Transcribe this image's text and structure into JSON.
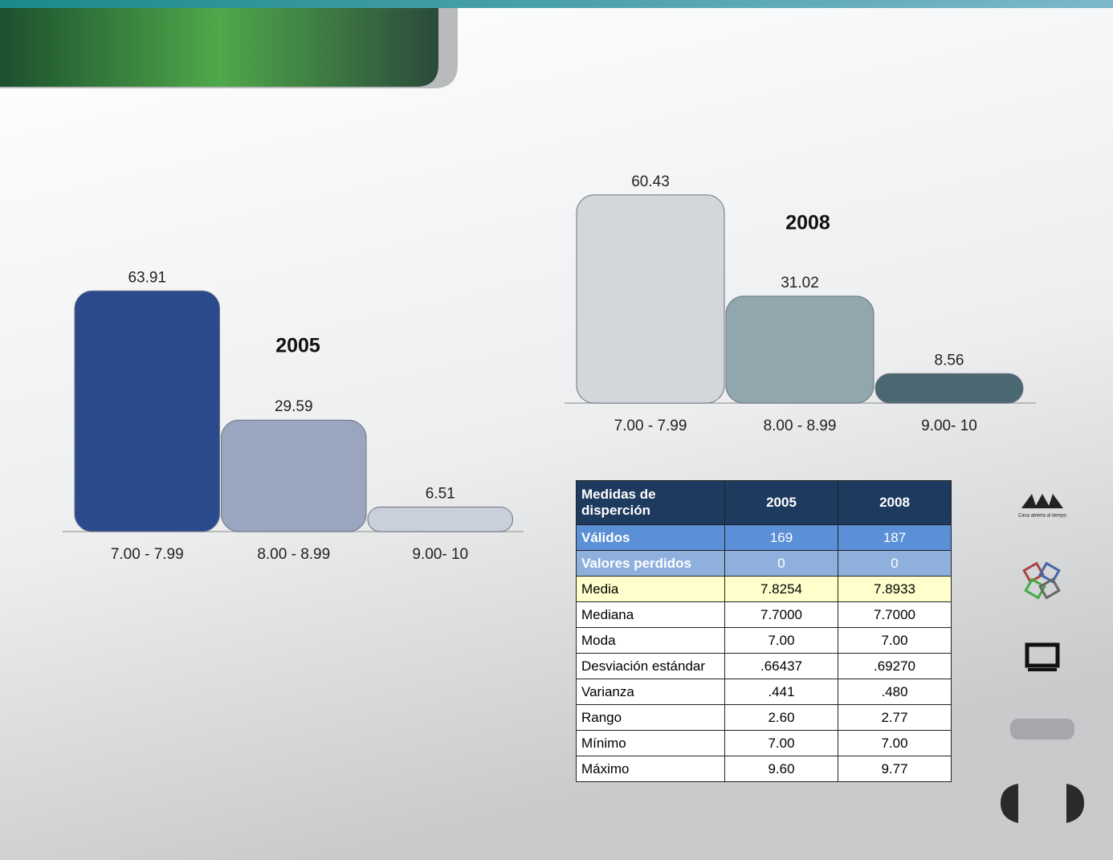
{
  "chart_data": [
    {
      "type": "bar",
      "title": "2005",
      "categories": [
        "7.00 - 7.99",
        "8.00 - 8.99",
        "9.00- 10"
      ],
      "values": [
        63.91,
        29.59,
        6.51
      ],
      "colors": [
        "#2b4a8e",
        "#9aa5bf",
        "#c9d0dc"
      ]
    },
    {
      "type": "bar",
      "title": "2008",
      "categories": [
        "7.00 - 7.99",
        "8.00 - 8.99",
        "9.00- 10"
      ],
      "values": [
        60.43,
        31.02,
        8.56
      ],
      "colors": [
        "#d3d7db",
        "#91a7ad",
        "#4b6771"
      ]
    }
  ],
  "table": {
    "header": [
      "Medidas de disperción",
      "2005",
      "2008"
    ],
    "rows": [
      [
        "Válidos",
        "169",
        "187"
      ],
      [
        "Valores perdidos",
        "0",
        "0"
      ],
      [
        "Media",
        "7.8254",
        "7.8933"
      ],
      [
        "Mediana",
        "7.7000",
        "7.7000"
      ],
      [
        "Moda",
        "7.00",
        "7.00"
      ],
      [
        "Desviación estándar",
        ".66437",
        ".69270"
      ],
      [
        "Varianza",
        ".441",
        ".480"
      ],
      [
        "Rango",
        "2.60",
        "2.77"
      ],
      [
        "Mínimo",
        "7.00",
        "7.00"
      ],
      [
        "Máximo",
        "9.60",
        "9.77"
      ]
    ]
  },
  "logo_caption": "Casa abierta al tiempo"
}
